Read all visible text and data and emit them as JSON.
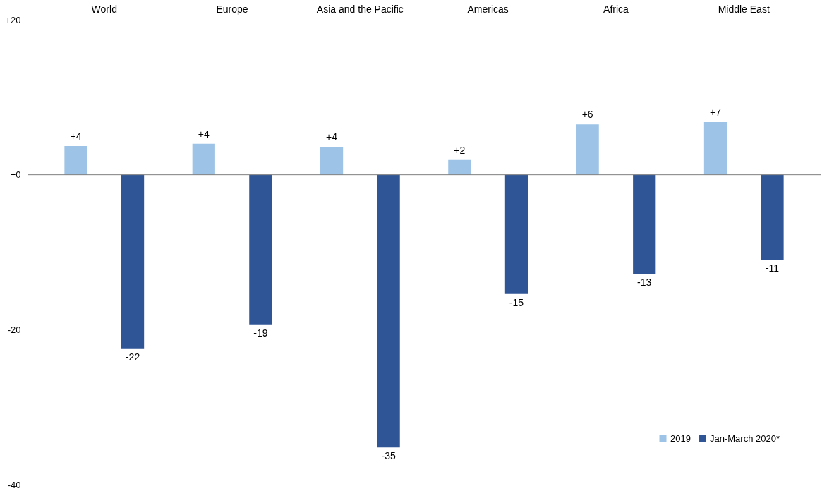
{
  "chart_data": {
    "type": "bar",
    "categories": [
      "World",
      "Europe",
      "Asia and the Pacific",
      "Americas",
      "Africa",
      "Middle East"
    ],
    "series": [
      {
        "name": "2019",
        "color": "#9dc3e6",
        "values": [
          3.7,
          4.0,
          3.6,
          1.9,
          6.5,
          6.8
        ],
        "value_labels": [
          "+4",
          "+4",
          "+4",
          "+2",
          "+6",
          "+7"
        ]
      },
      {
        "name": "Jan-March 2020*",
        "color": "#2f5597",
        "values": [
          -22.4,
          -19.3,
          -35.2,
          -15.4,
          -12.8,
          -11.0
        ],
        "value_labels": [
          "-22",
          "-19",
          "-35",
          "-15",
          "-13",
          "-11"
        ]
      }
    ],
    "ylim": [
      -40,
      20
    ],
    "yticks": [
      {
        "value": 20,
        "label": "+20"
      },
      {
        "value": 0,
        "label": "+0"
      },
      -20,
      -40
    ],
    "ref_lines": [
      {
        "axis": "y",
        "value": 0,
        "color": "#7f7f7f"
      }
    ],
    "grid": false,
    "legend": "bottom right"
  }
}
